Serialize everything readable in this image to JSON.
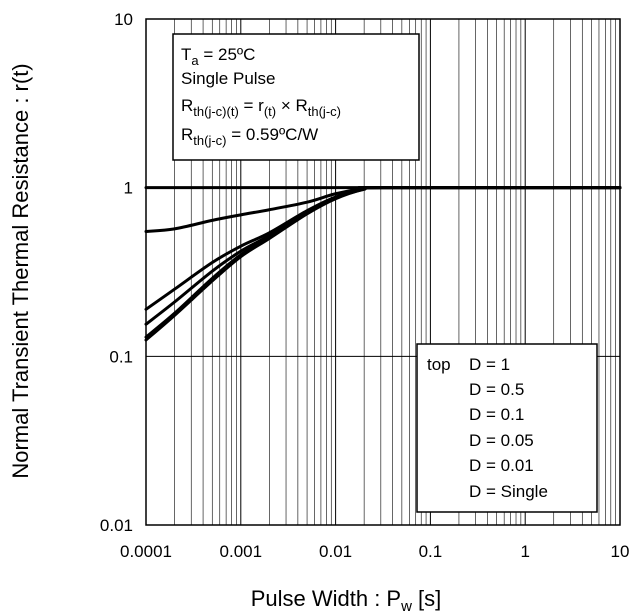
{
  "chart_data": {
    "type": "line",
    "xlabel": "Pulse Width : Pw [s]",
    "ylabel": "Normal Transient Thermal Resistance : r(t)",
    "xscale": "log",
    "yscale": "log",
    "xlim": [
      0.0001,
      10
    ],
    "ylim": [
      0.01,
      10
    ],
    "grid": true,
    "x_ticks": [
      "0.0001",
      "0.001",
      "0.01",
      "0.1",
      "1",
      "10"
    ],
    "y_ticks": [
      "0.01",
      "0.1",
      "1",
      "10"
    ],
    "series": [
      {
        "name": "D = 1",
        "x": [
          0.0001,
          10
        ],
        "y": [
          1,
          1
        ]
      },
      {
        "name": "D = 0.5",
        "x": [
          0.0001,
          0.0002,
          0.0005,
          0.001,
          0.002,
          0.005,
          0.01,
          0.02,
          0.03,
          10
        ],
        "y": [
          0.55,
          0.57,
          0.64,
          0.69,
          0.74,
          0.82,
          0.92,
          0.99,
          1,
          1
        ]
      },
      {
        "name": "D = 0.1",
        "x": [
          0.0001,
          0.0002,
          0.0005,
          0.001,
          0.002,
          0.005,
          0.01,
          0.02,
          0.03,
          10
        ],
        "y": [
          0.19,
          0.25,
          0.36,
          0.45,
          0.54,
          0.73,
          0.88,
          0.98,
          1,
          1
        ]
      },
      {
        "name": "D = 0.05",
        "x": [
          0.0001,
          0.0002,
          0.0005,
          0.001,
          0.002,
          0.005,
          0.01,
          0.02,
          0.03,
          10
        ],
        "y": [
          0.155,
          0.21,
          0.32,
          0.42,
          0.52,
          0.72,
          0.87,
          0.98,
          1,
          1
        ]
      },
      {
        "name": "D = 0.01",
        "x": [
          0.0001,
          0.0002,
          0.0005,
          0.001,
          0.002,
          0.005,
          0.01,
          0.02,
          0.03,
          10
        ],
        "y": [
          0.13,
          0.18,
          0.29,
          0.4,
          0.51,
          0.71,
          0.87,
          0.98,
          1,
          1
        ]
      },
      {
        "name": "D = Single",
        "x": [
          0.0001,
          0.0002,
          0.0005,
          0.001,
          0.002,
          0.005,
          0.01,
          0.02,
          0.03,
          10
        ],
        "y": [
          0.125,
          0.175,
          0.28,
          0.39,
          0.5,
          0.7,
          0.86,
          0.98,
          1,
          1
        ]
      }
    ],
    "annotation": {
      "line1": "Ta = 25ºC",
      "line2": "Single Pulse",
      "line3": "Rth(j-c)(t) = r(t) × Rth(j-c)",
      "line4": "Rth(j-c) = 0.59ºC/W"
    },
    "legend": {
      "position": "bottom-right",
      "prefix": "top",
      "entries": [
        "D = 1",
        "D = 0.5",
        "D = 0.1",
        "D = 0.05",
        "D = 0.01",
        "D = Single"
      ]
    }
  }
}
